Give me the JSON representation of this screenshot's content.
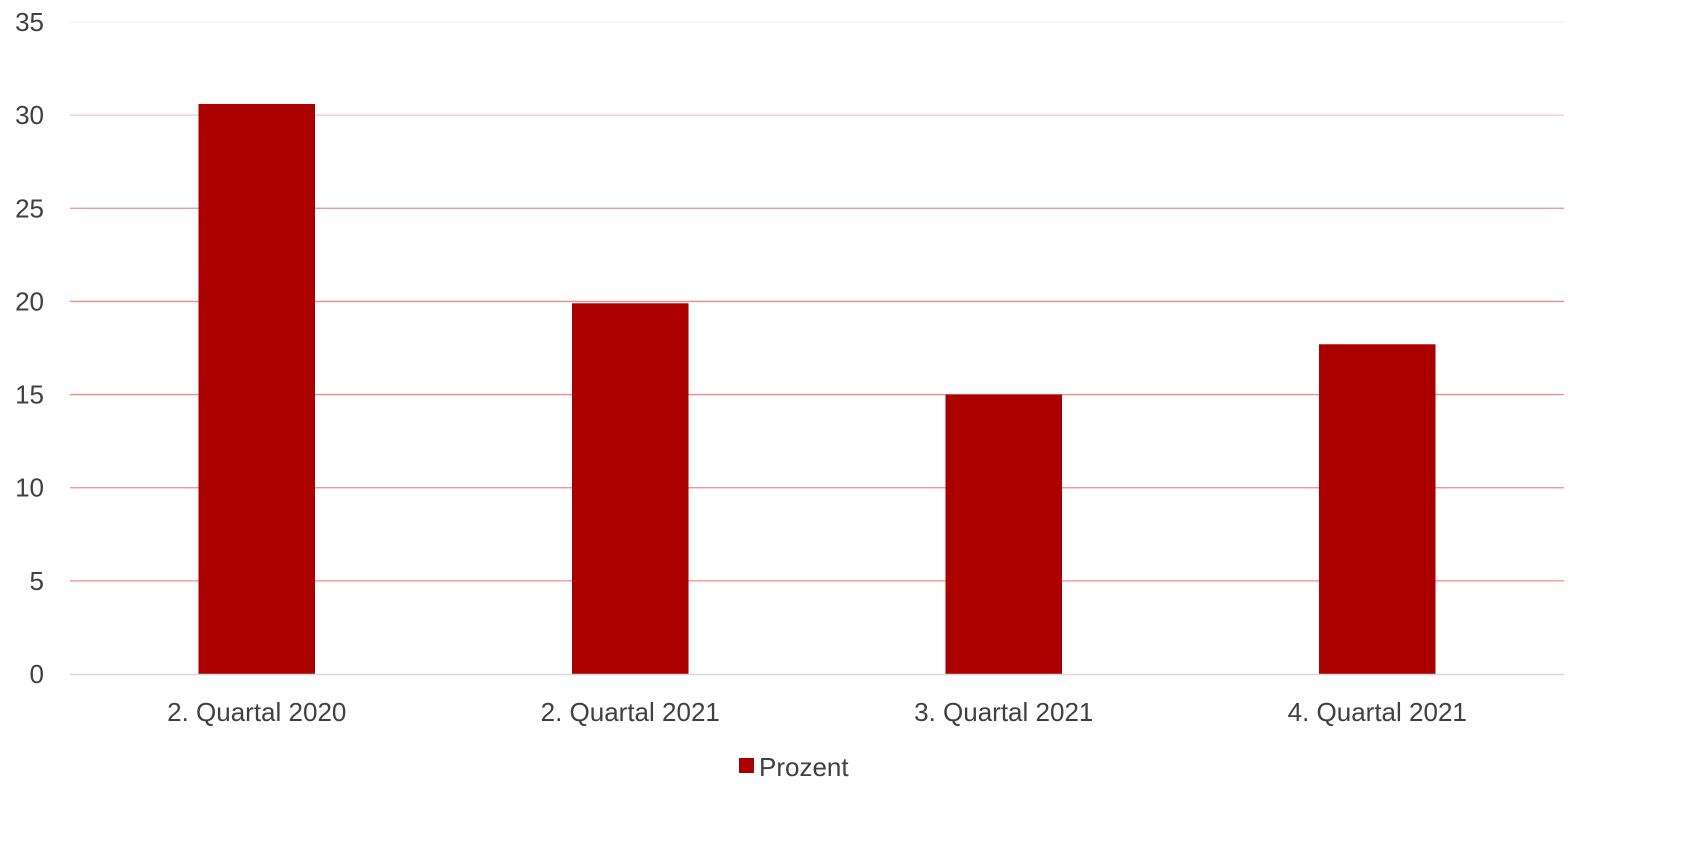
{
  "chart_data": {
    "type": "bar",
    "categories": [
      "2. Quartal 2020",
      "2. Quartal 2021",
      "3. Quartal 2021",
      "4. Quartal 2021"
    ],
    "series": [
      {
        "name": "Prozent",
        "values": [
          30.6,
          19.9,
          15.0,
          17.7
        ]
      }
    ],
    "ylim": [
      0,
      35
    ],
    "yticks": [
      0,
      5,
      10,
      15,
      20,
      25,
      30,
      35
    ],
    "ytick_labels": [
      "0",
      "5",
      "10",
      "15",
      "20",
      "25",
      "30",
      "35"
    ],
    "grid": true,
    "legend_position": "bottom",
    "colors": {
      "bar": "#ab0000",
      "grid_low": "#f28a8a",
      "grid_high": "#f6f0f0",
      "axis": "#d9d9d9"
    }
  }
}
